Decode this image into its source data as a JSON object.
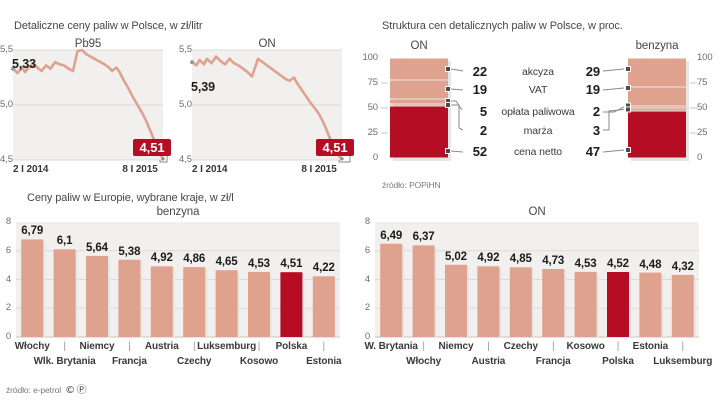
{
  "sections": {
    "poland_prices": {
      "title": "Detaliczne ceny paliw w Polsce, w zł/litr"
    },
    "structure": {
      "title": "Struktura cen detalicznych paliw w Polsce, w proc.",
      "source": "źródło: POPiHN"
    },
    "europe": {
      "title": "Ceny paliw w Europie, wybrane kraje, w zł/l",
      "source": "źródło: e-petrol",
      "source_symbols": "©Ⓟ"
    }
  },
  "colors": {
    "salmon": "#dfa28f",
    "dark_red": "#b50d24",
    "chart_bg": "#f1f0ef",
    "grid": "#dcdad9",
    "axis": "#c6c4c3",
    "connector": "#8a8a8a",
    "marker": "#4d4d4d",
    "shadow": "#e7e5e4"
  },
  "chart_data": [
    {
      "id": "pb95-line",
      "type": "line",
      "title": "Pb95",
      "section_title": "Detaliczne ceny paliw w Polsce, w zł/litr",
      "ylim": [
        4.5,
        5.5
      ],
      "y_ticks": [
        "5,5",
        "5,0",
        "4,5"
      ],
      "x_ticks": [
        "2 I 2014",
        "8 I 2015"
      ],
      "start_value": 5.33,
      "start_label": "5,33",
      "end_value": 4.51,
      "end_badge": "4,51",
      "points": [
        [
          0,
          5.33
        ],
        [
          0.03,
          5.29
        ],
        [
          0.06,
          5.34
        ],
        [
          0.08,
          5.3
        ],
        [
          0.11,
          5.35
        ],
        [
          0.14,
          5.37
        ],
        [
          0.17,
          5.33
        ],
        [
          0.19,
          5.31
        ],
        [
          0.22,
          5.36
        ],
        [
          0.25,
          5.33
        ],
        [
          0.28,
          5.39
        ],
        [
          0.31,
          5.37
        ],
        [
          0.34,
          5.36
        ],
        [
          0.37,
          5.33
        ],
        [
          0.4,
          5.31
        ],
        [
          0.43,
          5.49
        ],
        [
          0.46,
          5.5
        ],
        [
          0.49,
          5.46
        ],
        [
          0.53,
          5.43
        ],
        [
          0.57,
          5.4
        ],
        [
          0.61,
          5.37
        ],
        [
          0.64,
          5.34
        ],
        [
          0.66,
          5.31
        ],
        [
          0.69,
          5.34
        ],
        [
          0.71,
          5.3
        ],
        [
          0.74,
          5.22
        ],
        [
          0.77,
          5.15
        ],
        [
          0.8,
          5.07
        ],
        [
          0.83,
          5.0
        ],
        [
          0.86,
          4.93
        ],
        [
          0.89,
          4.85
        ],
        [
          0.92,
          4.75
        ],
        [
          0.95,
          4.65
        ],
        [
          0.98,
          4.56
        ],
        [
          1,
          4.51
        ]
      ]
    },
    {
      "id": "on-line",
      "type": "line",
      "title": "ON",
      "ylim": [
        4.5,
        5.5
      ],
      "y_ticks": [
        "5,5",
        "5,0",
        "4,5"
      ],
      "x_ticks": [
        "2 I 2014",
        "8 I 2015"
      ],
      "start_value": 5.39,
      "start_label": "5,39",
      "end_value": 4.51,
      "end_badge": "4,51",
      "points": [
        [
          0,
          5.39
        ],
        [
          0.03,
          5.36
        ],
        [
          0.05,
          5.41
        ],
        [
          0.08,
          5.37
        ],
        [
          0.1,
          5.42
        ],
        [
          0.13,
          5.38
        ],
        [
          0.16,
          5.44
        ],
        [
          0.19,
          5.4
        ],
        [
          0.22,
          5.37
        ],
        [
          0.25,
          5.42
        ],
        [
          0.28,
          5.38
        ],
        [
          0.31,
          5.36
        ],
        [
          0.34,
          5.33
        ],
        [
          0.37,
          5.3
        ],
        [
          0.4,
          5.26
        ],
        [
          0.44,
          5.42
        ],
        [
          0.47,
          5.39
        ],
        [
          0.5,
          5.36
        ],
        [
          0.53,
          5.33
        ],
        [
          0.56,
          5.3
        ],
        [
          0.59,
          5.27
        ],
        [
          0.62,
          5.24
        ],
        [
          0.65,
          5.22
        ],
        [
          0.68,
          5.25
        ],
        [
          0.7,
          5.2
        ],
        [
          0.73,
          5.14
        ],
        [
          0.76,
          5.08
        ],
        [
          0.79,
          5.02
        ],
        [
          0.82,
          4.97
        ],
        [
          0.85,
          4.91
        ],
        [
          0.88,
          4.83
        ],
        [
          0.91,
          4.73
        ],
        [
          0.94,
          4.63
        ],
        [
          0.97,
          4.55
        ],
        [
          1,
          4.51
        ]
      ]
    },
    {
      "id": "structure-on",
      "type": "stacked-bar",
      "title": "ON",
      "section_title": "Struktura cen detalicznych paliw w Polsce, w proc.",
      "ylim": [
        0,
        100
      ],
      "y_ticks": [
        "100",
        "75",
        "50",
        "25",
        "0"
      ],
      "segments": [
        {
          "label": "akcyza",
          "value": 22
        },
        {
          "label": "VAT",
          "value": 19
        },
        {
          "label": "opłata paliwowa",
          "value": 5
        },
        {
          "label": "marża",
          "value": 2
        },
        {
          "label": "cena netto",
          "value": 52
        }
      ],
      "source": "źródło: POPiHN"
    },
    {
      "id": "structure-benzyna",
      "type": "stacked-bar",
      "title": "benzyna",
      "ylim": [
        0,
        100
      ],
      "y_ticks": [
        "100",
        "75",
        "50",
        "25",
        "0"
      ],
      "segments": [
        {
          "label": "akcyza",
          "value": 29
        },
        {
          "label": "VAT",
          "value": 19
        },
        {
          "label": "opłata paliwowa",
          "value": 2
        },
        {
          "label": "marża",
          "value": 3
        },
        {
          "label": "cena netto",
          "value": 47
        }
      ]
    },
    {
      "id": "europe-benzyna",
      "type": "bar",
      "title": "benzyna",
      "section_title": "Ceny paliw w Europie, wybrane kraje, w zł/l",
      "categories": [
        "Włochy",
        "Wlk. Brytania",
        "Niemcy",
        "Francja",
        "Austria",
        "Czechy",
        "Luksemburg",
        "Kosowo",
        "Polska",
        "Estonia"
      ],
      "values": [
        6.79,
        6.1,
        5.64,
        5.38,
        4.92,
        4.86,
        4.65,
        4.53,
        4.51,
        4.22
      ],
      "value_labels": [
        "6,79",
        "6,1",
        "5,64",
        "5,38",
        "4,92",
        "4,86",
        "4,65",
        "4,53",
        "4,51",
        "4,22"
      ],
      "highlight_index": 8,
      "highlight_category": "Polska",
      "ylim": [
        0,
        8
      ],
      "y_ticks": [
        "8",
        "6",
        "4",
        "2",
        "0"
      ],
      "source": "źródło: e-petrol"
    },
    {
      "id": "europe-on",
      "type": "bar",
      "title": "ON",
      "categories": [
        "W. Brytania",
        "Włochy",
        "Niemcy",
        "Austria",
        "Czechy",
        "Francja",
        "Kosowo",
        "Polska",
        "Estonia",
        "Luksemburg"
      ],
      "values": [
        6.49,
        6.37,
        5.02,
        4.92,
        4.85,
        4.73,
        4.53,
        4.52,
        4.48,
        4.32
      ],
      "value_labels": [
        "6,49",
        "6,37",
        "5,02",
        "4,92",
        "4,85",
        "4,73",
        "4,53",
        "4,52",
        "4,48",
        "4,32"
      ],
      "highlight_index": 7,
      "highlight_category": "Polska",
      "ylim": [
        0,
        8
      ],
      "y_ticks": [
        "8",
        "6",
        "4",
        "2",
        "0"
      ]
    }
  ]
}
